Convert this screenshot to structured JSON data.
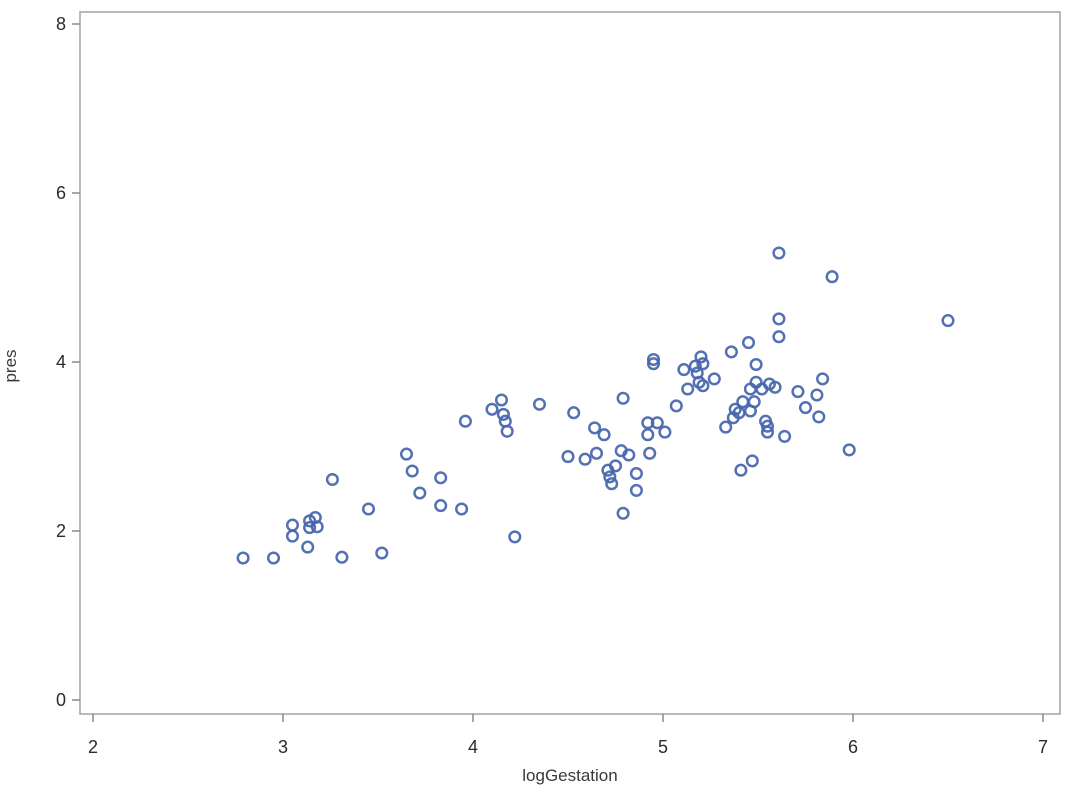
{
  "chart_data": {
    "type": "scatter",
    "title": "",
    "xlabel": "logGestation",
    "ylabel": "pres",
    "xlim": [
      2,
      7
    ],
    "ylim": [
      0,
      8
    ],
    "x_ticks": [
      "2",
      "3",
      "4",
      "5",
      "6",
      "7"
    ],
    "y_ticks": [
      "0",
      "2",
      "4",
      "6",
      "8"
    ],
    "grid": "off",
    "legend": "none",
    "marker": {
      "shape": "open-circle",
      "color": "#4565ac",
      "radius": 5.3,
      "stroke_width": 2.5
    },
    "frame_color": "#a8a8a8",
    "tick_color": "#8a8a8a",
    "points": [
      [
        2.79,
        1.68
      ],
      [
        2.95,
        1.68
      ],
      [
        3.05,
        2.07
      ],
      [
        3.05,
        1.94
      ],
      [
        3.14,
        2.12
      ],
      [
        3.17,
        2.16
      ],
      [
        3.14,
        2.04
      ],
      [
        3.18,
        2.05
      ],
      [
        3.13,
        1.81
      ],
      [
        3.26,
        2.61
      ],
      [
        3.31,
        1.69
      ],
      [
        3.45,
        2.26
      ],
      [
        3.52,
        1.74
      ],
      [
        3.65,
        2.91
      ],
      [
        3.68,
        2.71
      ],
      [
        3.72,
        2.45
      ],
      [
        3.83,
        2.63
      ],
      [
        3.83,
        2.3
      ],
      [
        3.94,
        2.26
      ],
      [
        3.96,
        3.3
      ],
      [
        4.1,
        3.44
      ],
      [
        4.15,
        3.55
      ],
      [
        4.16,
        3.38
      ],
      [
        4.17,
        3.3
      ],
      [
        4.18,
        3.18
      ],
      [
        4.22,
        1.93
      ],
      [
        4.35,
        3.5
      ],
      [
        4.53,
        3.4
      ],
      [
        4.5,
        2.88
      ],
      [
        4.59,
        2.85
      ],
      [
        4.64,
        3.22
      ],
      [
        4.69,
        3.14
      ],
      [
        4.65,
        2.92
      ],
      [
        4.79,
        3.57
      ],
      [
        4.78,
        2.95
      ],
      [
        4.82,
        2.9
      ],
      [
        4.75,
        2.77
      ],
      [
        4.71,
        2.72
      ],
      [
        4.72,
        2.64
      ],
      [
        4.73,
        2.56
      ],
      [
        4.86,
        2.68
      ],
      [
        4.86,
        2.48
      ],
      [
        4.79,
        2.21
      ],
      [
        4.93,
        2.92
      ],
      [
        4.92,
        3.28
      ],
      [
        4.97,
        3.28
      ],
      [
        5.01,
        3.17
      ],
      [
        4.92,
        3.14
      ],
      [
        4.95,
        4.03
      ],
      [
        4.95,
        3.98
      ],
      [
        5.07,
        3.48
      ],
      [
        5.11,
        3.91
      ],
      [
        5.17,
        3.95
      ],
      [
        5.2,
        4.06
      ],
      [
        5.21,
        3.98
      ],
      [
        5.18,
        3.87
      ],
      [
        5.19,
        3.76
      ],
      [
        5.21,
        3.72
      ],
      [
        5.13,
        3.68
      ],
      [
        5.27,
        3.8
      ],
      [
        5.33,
        3.23
      ],
      [
        5.36,
        4.12
      ],
      [
        5.49,
        3.97
      ],
      [
        5.49,
        3.76
      ],
      [
        5.56,
        3.74
      ],
      [
        5.59,
        3.7
      ],
      [
        5.46,
        3.68
      ],
      [
        5.52,
        3.68
      ],
      [
        5.42,
        3.53
      ],
      [
        5.48,
        3.53
      ],
      [
        5.38,
        3.44
      ],
      [
        5.4,
        3.4
      ],
      [
        5.37,
        3.34
      ],
      [
        5.46,
        3.42
      ],
      [
        5.54,
        3.3
      ],
      [
        5.55,
        3.24
      ],
      [
        5.55,
        3.17
      ],
      [
        5.64,
        3.12
      ],
      [
        5.47,
        2.83
      ],
      [
        5.41,
        2.72
      ],
      [
        5.45,
        4.23
      ],
      [
        5.61,
        4.51
      ],
      [
        5.61,
        4.3
      ],
      [
        5.61,
        5.29
      ],
      [
        5.71,
        3.65
      ],
      [
        5.81,
        3.61
      ],
      [
        5.84,
        3.8
      ],
      [
        5.75,
        3.46
      ],
      [
        5.82,
        3.35
      ],
      [
        5.98,
        2.96
      ],
      [
        5.89,
        5.01
      ],
      [
        6.5,
        4.49
      ]
    ]
  }
}
